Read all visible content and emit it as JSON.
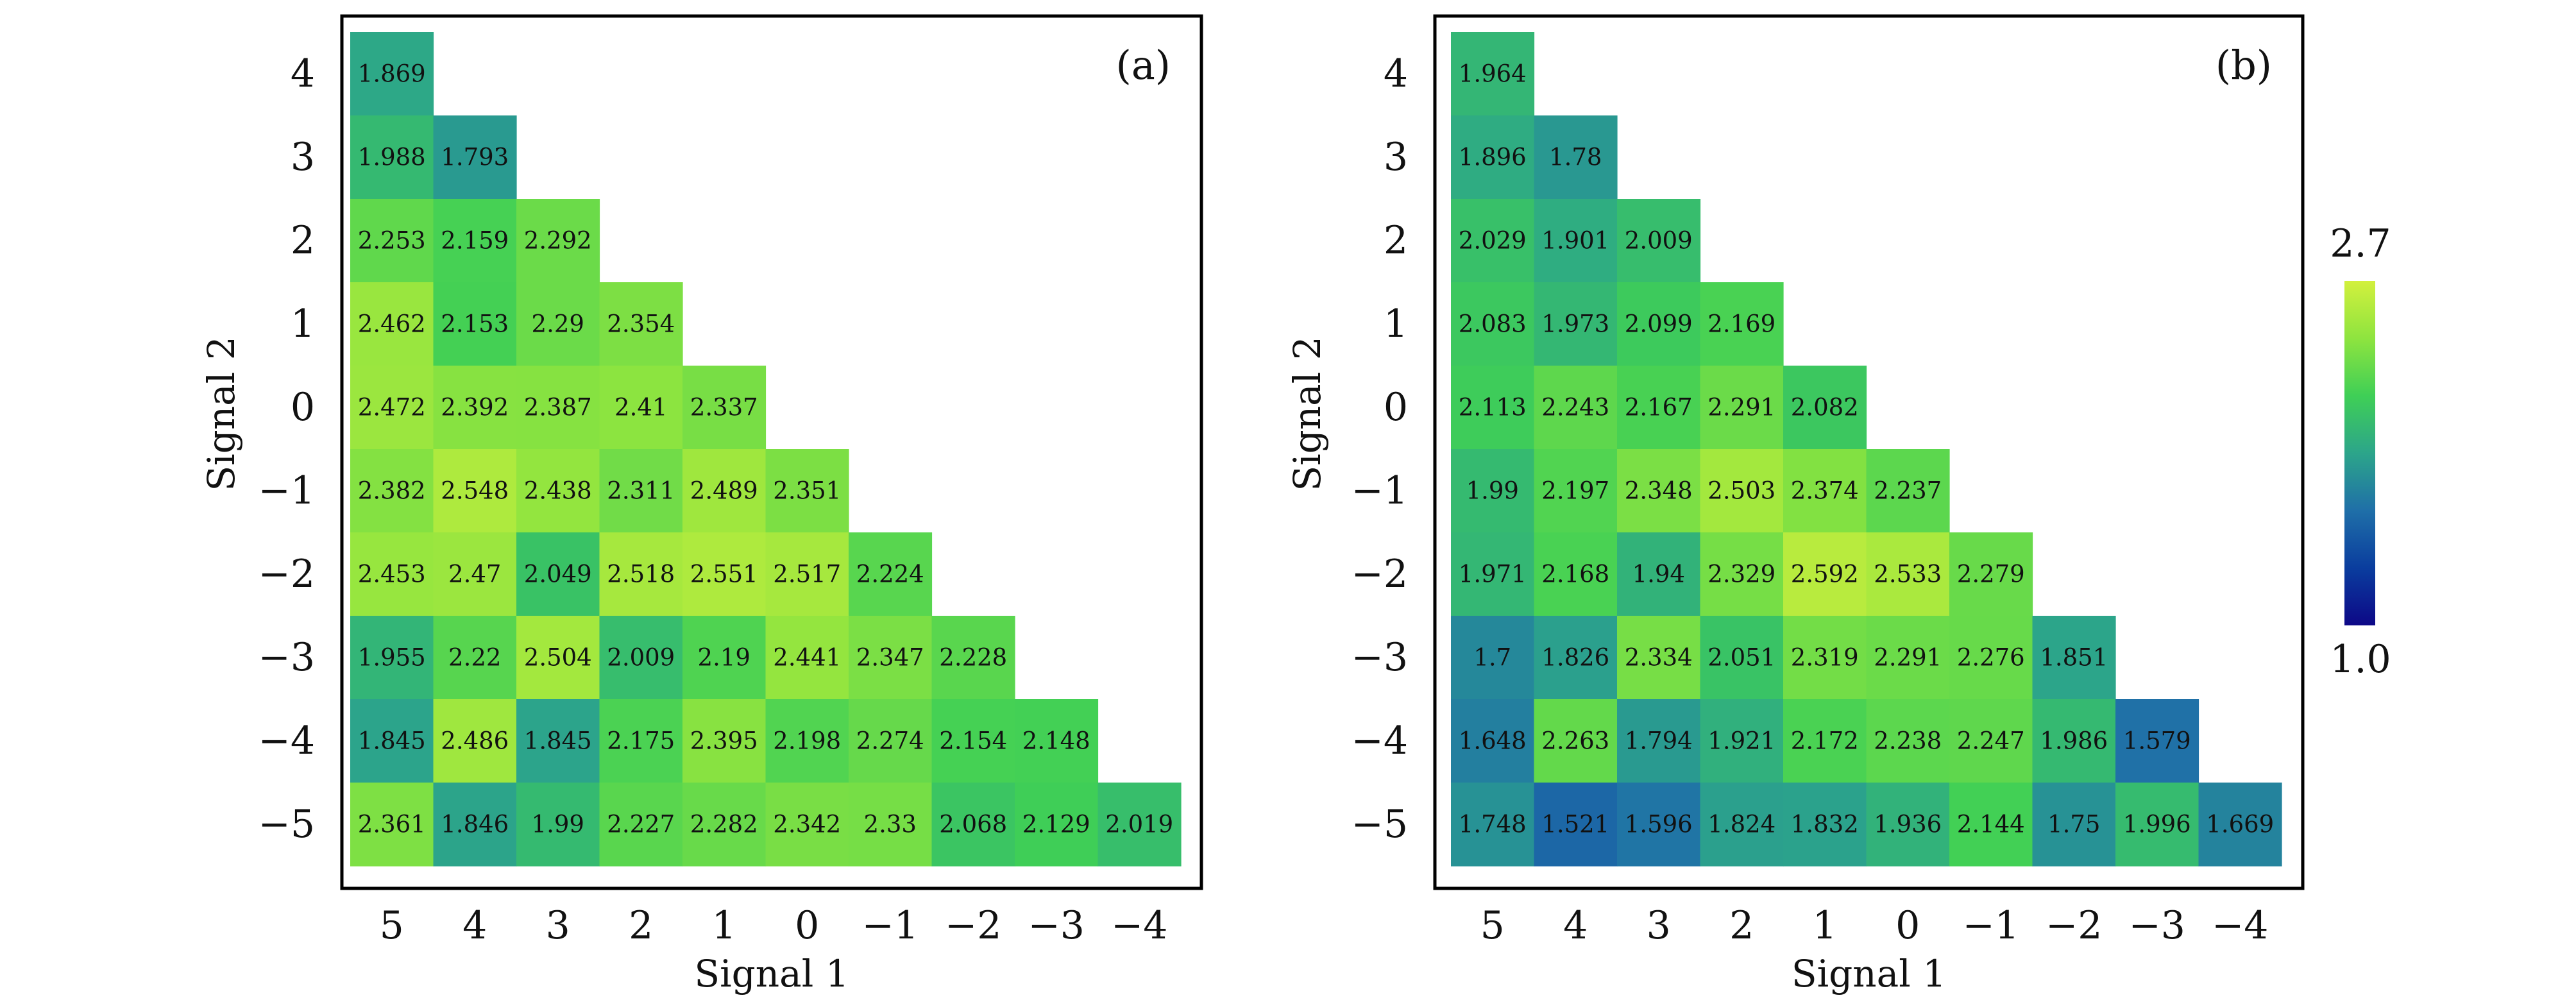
{
  "chart_data": [
    {
      "type": "heatmap",
      "panel_label": "(a)",
      "xlabel": "Signal 1",
      "ylabel": "Signal 2",
      "x_tick_labels": [
        "5",
        "4",
        "3",
        "2",
        "1",
        "0",
        "−1",
        "−2",
        "−3",
        "−4"
      ],
      "y_tick_labels": [
        "4",
        "3",
        "2",
        "1",
        "0",
        "−1",
        "−2",
        "−3",
        "−4",
        "−5"
      ],
      "rows": [
        [
          1.869
        ],
        [
          1.988,
          1.793
        ],
        [
          2.253,
          2.159,
          2.292
        ],
        [
          2.462,
          2.153,
          2.29,
          2.354
        ],
        [
          2.472,
          2.392,
          2.387,
          2.41,
          2.337
        ],
        [
          2.382,
          2.548,
          2.438,
          2.311,
          2.489,
          2.351
        ],
        [
          2.453,
          2.47,
          2.049,
          2.518,
          2.551,
          2.517,
          2.224
        ],
        [
          1.955,
          2.22,
          2.504,
          2.009,
          2.19,
          2.441,
          2.347,
          2.228
        ],
        [
          1.845,
          2.486,
          1.845,
          2.175,
          2.395,
          2.198,
          2.274,
          2.154,
          2.148
        ],
        [
          2.361,
          1.846,
          1.99,
          2.227,
          2.282,
          2.342,
          2.33,
          2.068,
          2.129,
          2.019
        ]
      ]
    },
    {
      "type": "heatmap",
      "panel_label": "(b)",
      "xlabel": "Signal 1",
      "ylabel": "Signal 2",
      "x_tick_labels": [
        "5",
        "4",
        "3",
        "2",
        "1",
        "0",
        "−1",
        "−2",
        "−3",
        "−4"
      ],
      "y_tick_labels": [
        "4",
        "3",
        "2",
        "1",
        "0",
        "−1",
        "−2",
        "−3",
        "−4",
        "−5"
      ],
      "rows": [
        [
          1.964
        ],
        [
          1.896,
          1.78
        ],
        [
          2.029,
          1.901,
          2.009
        ],
        [
          2.083,
          1.973,
          2.099,
          2.169
        ],
        [
          2.113,
          2.243,
          2.167,
          2.291,
          2.082
        ],
        [
          1.99,
          2.197,
          2.348,
          2.503,
          2.374,
          2.237
        ],
        [
          1.971,
          2.168,
          1.94,
          2.329,
          2.592,
          2.533,
          2.279
        ],
        [
          1.7,
          1.826,
          2.334,
          2.051,
          2.319,
          2.291,
          2.276,
          1.851
        ],
        [
          1.648,
          2.263,
          1.794,
          1.921,
          2.172,
          2.238,
          2.247,
          1.986,
          1.579
        ],
        [
          1.748,
          1.521,
          1.596,
          1.824,
          1.832,
          1.936,
          2.144,
          1.75,
          1.996,
          1.669
        ]
      ]
    }
  ],
  "colorbar": {
    "min_label": "1.0",
    "max_label": "2.7",
    "vmin": 1.0,
    "vmax": 2.7,
    "colormap": [
      "#0d0887",
      "#0a3d9e",
      "#1f6fa8",
      "#2ca58a",
      "#3fcf56",
      "#8ee43f",
      "#d2f03d"
    ]
  }
}
